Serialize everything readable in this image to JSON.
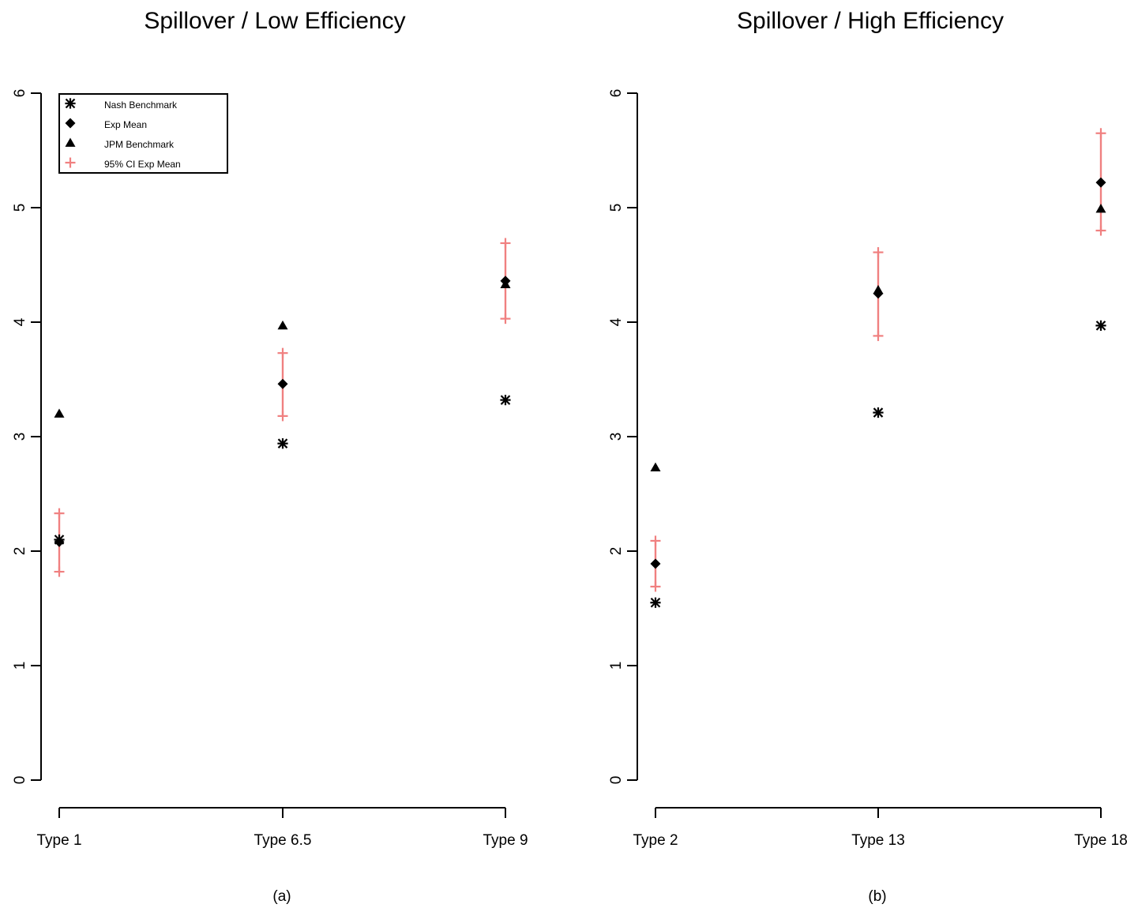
{
  "chart_data": [
    {
      "type": "scatter",
      "title": "Spillover / Low Efficiency",
      "caption": "(a)",
      "categories": [
        "Type 1",
        "Type 6.5",
        "Type 9"
      ],
      "yticks": [
        "0",
        "1",
        "2",
        "3",
        "4",
        "5",
        "6"
      ],
      "ylim": [
        0,
        6
      ],
      "grid": false,
      "legend_position": "top-left",
      "legend": [
        "Nash Benchmark",
        "Exp Mean",
        "JPM Benchmark",
        "95% CI Exp Mean"
      ],
      "series": [
        {
          "name": "Nash Benchmark",
          "marker": "asterisk",
          "color": "#000000",
          "values": [
            2.1,
            2.94,
            3.32
          ]
        },
        {
          "name": "Exp Mean",
          "marker": "diamond",
          "color": "#000000",
          "values": [
            2.08,
            3.46,
            4.36
          ]
        },
        {
          "name": "JPM Benchmark",
          "marker": "triangle",
          "color": "#000000",
          "values": [
            3.2,
            3.97,
            4.33
          ]
        },
        {
          "name": "95% CI Exp Mean",
          "marker": "plus",
          "color": "#f08080",
          "lower": [
            1.82,
            3.18,
            4.03
          ],
          "upper": [
            2.33,
            3.73,
            4.69
          ]
        }
      ]
    },
    {
      "type": "scatter",
      "title": "Spillover / High Efficiency",
      "caption": "(b)",
      "categories": [
        "Type 2",
        "Type 13",
        "Type 18"
      ],
      "yticks": [
        "0",
        "1",
        "2",
        "3",
        "4",
        "5",
        "6"
      ],
      "ylim": [
        0,
        6
      ],
      "grid": false,
      "series": [
        {
          "name": "Nash Benchmark",
          "marker": "asterisk",
          "color": "#000000",
          "values": [
            1.55,
            3.21,
            3.97
          ]
        },
        {
          "name": "Exp Mean",
          "marker": "diamond",
          "color": "#000000",
          "values": [
            1.89,
            4.25,
            5.22
          ]
        },
        {
          "name": "JPM Benchmark",
          "marker": "triangle",
          "color": "#000000",
          "values": [
            2.73,
            4.28,
            4.99
          ]
        },
        {
          "name": "95% CI Exp Mean",
          "marker": "plus",
          "color": "#f08080",
          "lower": [
            1.69,
            3.88,
            4.8
          ],
          "upper": [
            2.09,
            4.61,
            5.65
          ]
        }
      ]
    }
  ]
}
